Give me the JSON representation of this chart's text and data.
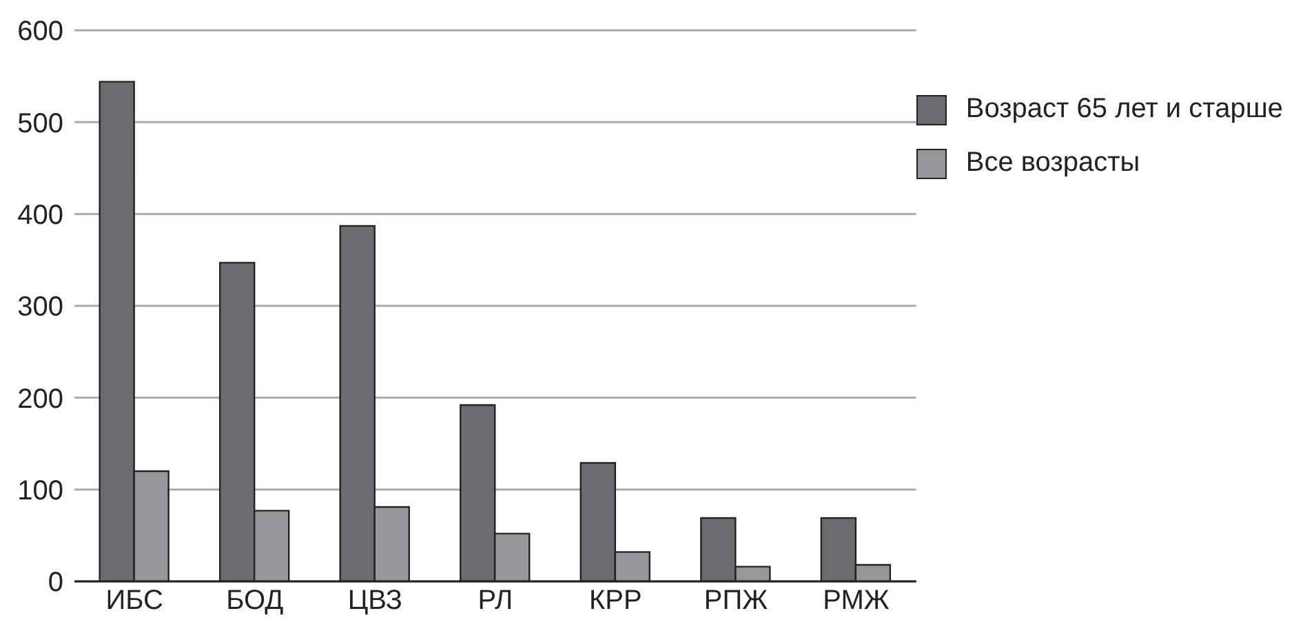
{
  "chart_data": {
    "type": "bar",
    "categories": [
      "ИБС",
      "БОД",
      "ЦВЗ",
      "РЛ",
      "КРР",
      "РПЖ",
      "РМЖ"
    ],
    "series": [
      {
        "name": "Возраст 65 лет и старше",
        "color": "#6b6c70",
        "values": [
          544,
          347,
          387,
          192,
          129,
          69,
          69
        ]
      },
      {
        "name": "Все возрасты",
        "color": "#96979b",
        "values": [
          120,
          77,
          81,
          52,
          32,
          16,
          18
        ]
      }
    ],
    "ylim": [
      0,
      600
    ],
    "yticks": [
      0,
      100,
      200,
      300,
      400,
      500,
      600
    ],
    "grid": "y",
    "legend": "top right"
  }
}
